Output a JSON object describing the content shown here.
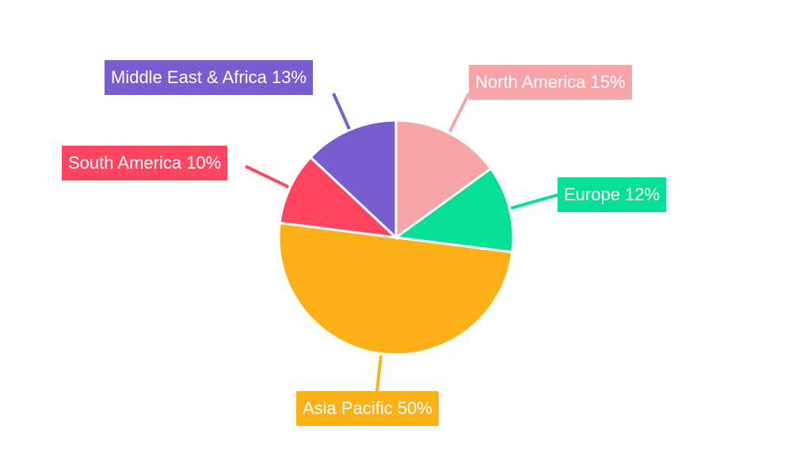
{
  "chart_data": {
    "type": "pie",
    "title": "",
    "start_angle": "top",
    "direction": "clockwise",
    "slices": [
      {
        "label": "North America",
        "value": 15,
        "display": "North America 15%",
        "color": "#F9A5A7"
      },
      {
        "label": "Europe",
        "value": 12,
        "display": "Europe 12%",
        "color": "#05E096"
      },
      {
        "label": "Asia Pacific",
        "value": 50,
        "display": "Asia Pacific 50%",
        "color": "#FDB119"
      },
      {
        "label": "South America",
        "value": 10,
        "display": "South America 10%",
        "color": "#FF4560"
      },
      {
        "label": "Middle East & Africa",
        "value": 13,
        "display": "Middle East & Africa 13%",
        "color": "#775DD0"
      }
    ]
  }
}
